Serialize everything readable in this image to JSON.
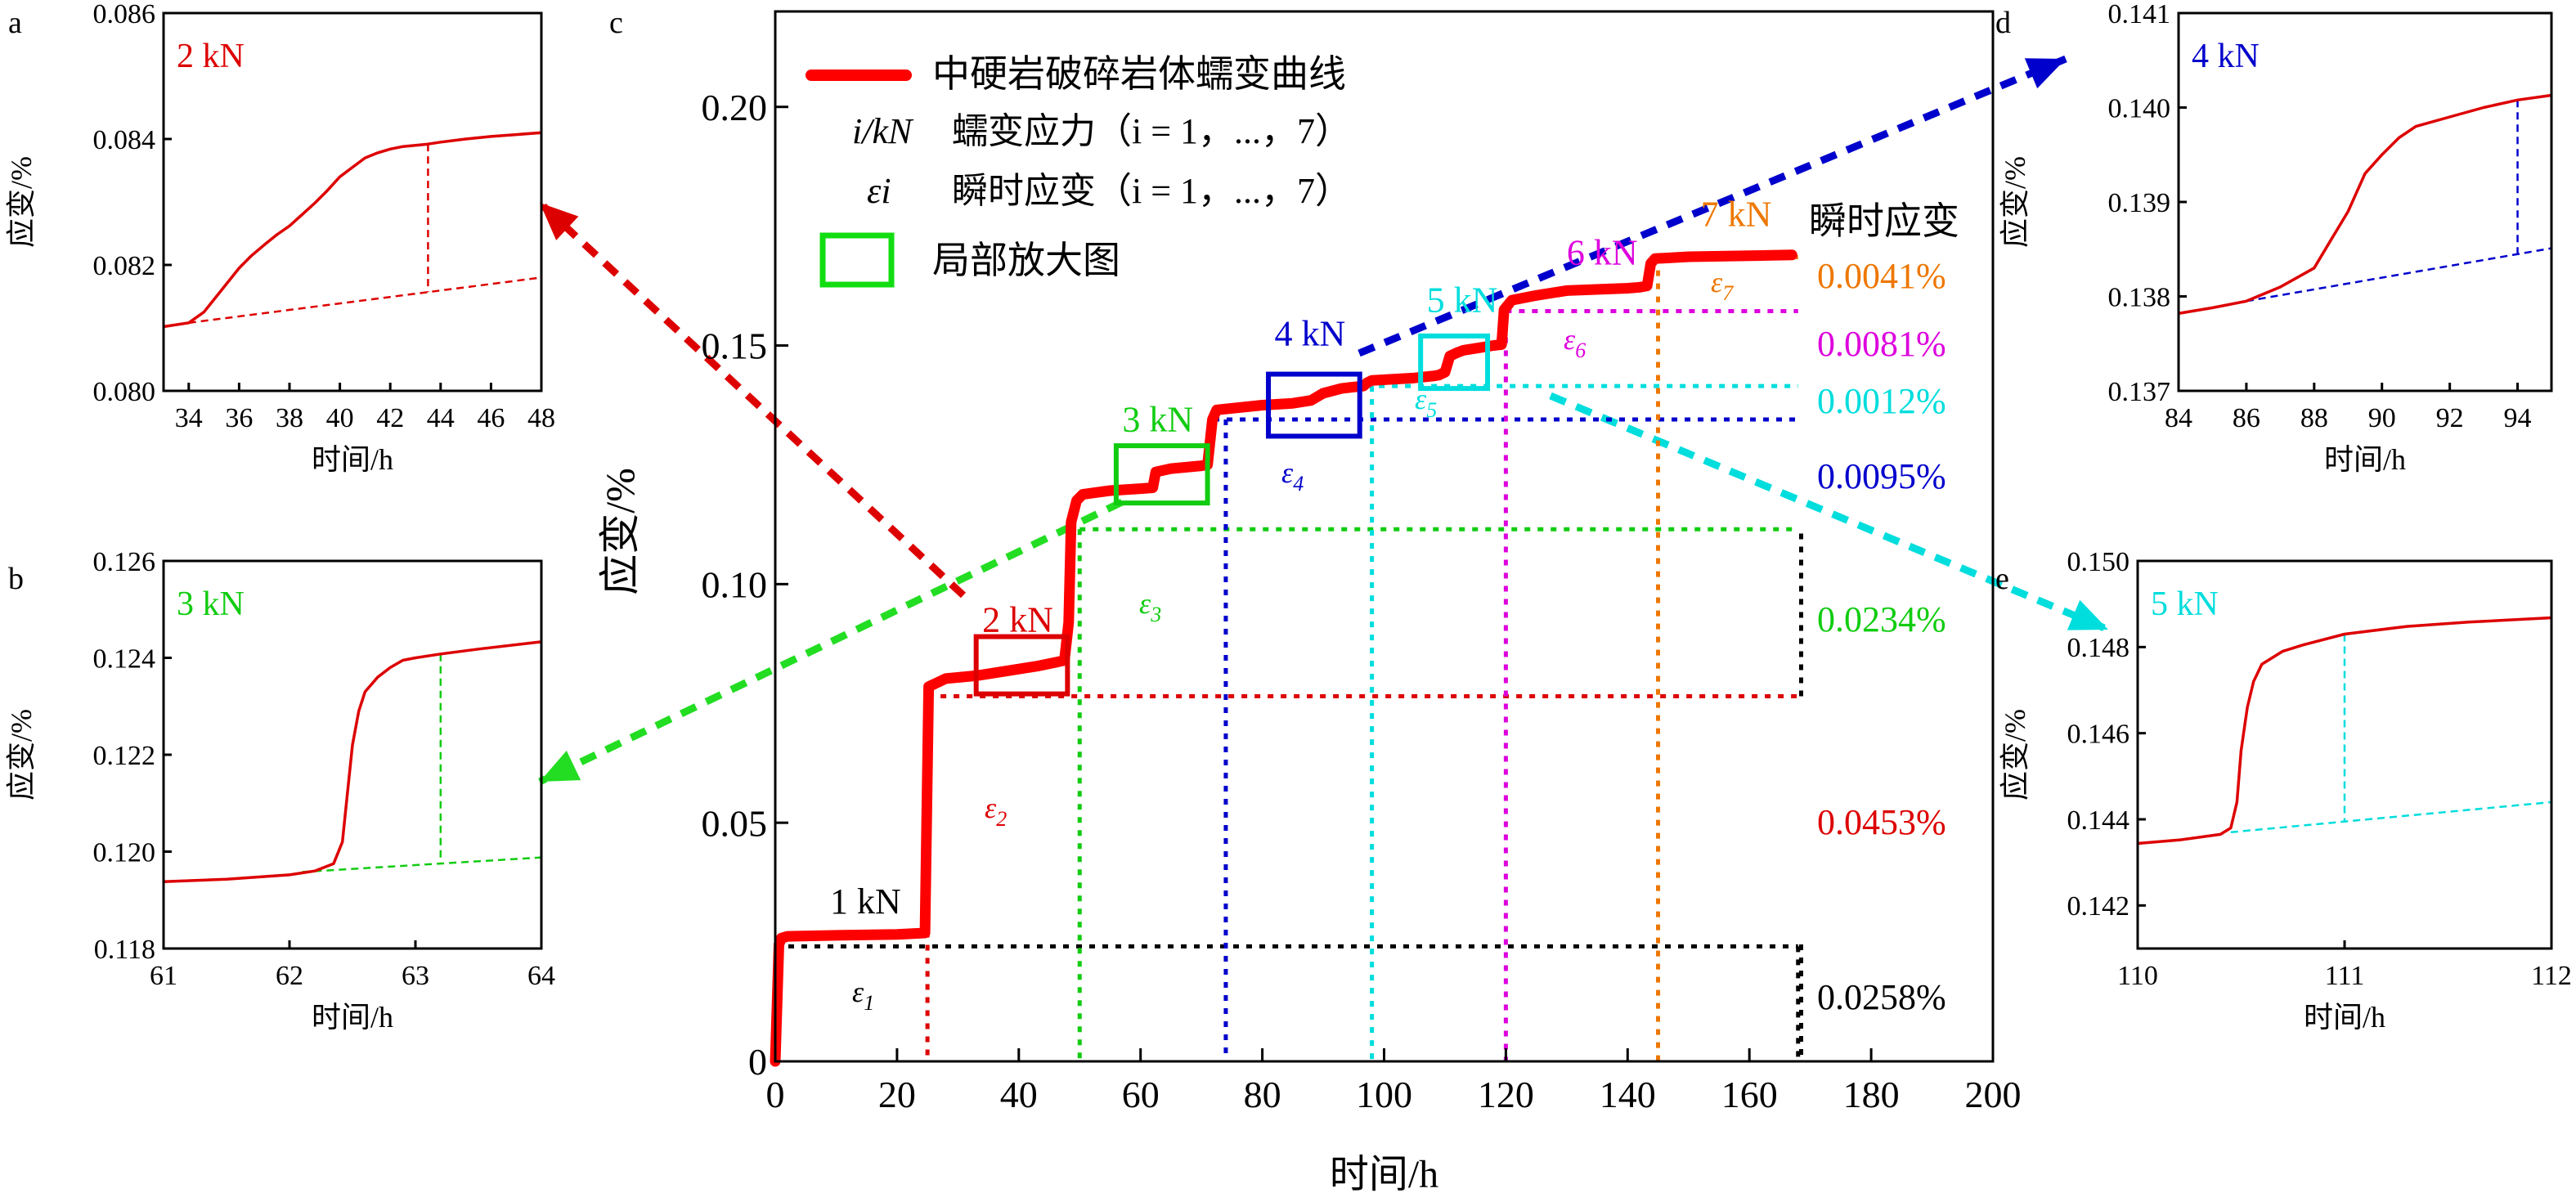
{
  "chart_data": [
    {
      "panel": "c",
      "type": "line",
      "xlabel": "时间/h",
      "ylabel": "应变/%",
      "xlim": [
        0,
        200
      ],
      "ylim": [
        0,
        0.22
      ],
      "xticks": [
        0,
        20,
        40,
        60,
        80,
        100,
        120,
        140,
        160,
        180,
        200
      ],
      "yticks": [
        0,
        0.05,
        0.1,
        0.15,
        0.2
      ],
      "ytick_labels": [
        "0",
        "0.05",
        "0.10",
        "0.15",
        "0.20"
      ],
      "legend": {
        "curve": "中硬岩破碎岩体蠕变曲线",
        "stress_key": "i/kN",
        "stress_desc": "蠕变应力（",
        "strain_key": "εi",
        "strain_desc": "瞬时应变（",
        "range_i": "i = 1，...，7）",
        "zoom": "局部放大图"
      },
      "series": [
        {
          "color": "#ff0000",
          "x": [
            0,
            0.6,
            1,
            2,
            10,
            20,
            24.6,
            25.2,
            28,
            33,
            38,
            43,
            46,
            47.5,
            48.2,
            48.6,
            49.5,
            50.5,
            55,
            60,
            62,
            62.5,
            65,
            70,
            71,
            71.8,
            72.5,
            80,
            85,
            88,
            90,
            93,
            95,
            96.6,
            97.2,
            98,
            105,
            108,
            109,
            110,
            110.8,
            112,
            113,
            118,
            119.3,
            119.7,
            121,
            125,
            130,
            140,
            142,
            143.2,
            143.8,
            144.5,
            150,
            160,
            167
          ],
          "y": [
            0,
            0.0245,
            0.0258,
            0.0262,
            0.0264,
            0.0266,
            0.0269,
            0.0785,
            0.0802,
            0.0808,
            0.0818,
            0.0828,
            0.0836,
            0.084,
            0.092,
            0.113,
            0.1175,
            0.1188,
            0.1196,
            0.12,
            0.1202,
            0.1235,
            0.1242,
            0.1248,
            0.125,
            0.1345,
            0.1365,
            0.1375,
            0.1379,
            0.1385,
            0.14,
            0.141,
            0.1413,
            0.1415,
            0.1422,
            0.1427,
            0.1432,
            0.1436,
            0.1438,
            0.1444,
            0.1478,
            0.1485,
            0.149,
            0.15,
            0.1502,
            0.1575,
            0.1595,
            0.1605,
            0.1615,
            0.162,
            0.1622,
            0.1625,
            0.1672,
            0.1682,
            0.1686,
            0.1688,
            0.169
          ]
        }
      ],
      "stress_labels": [
        {
          "label": "1 kN",
          "color": "#000000",
          "x": 9,
          "y": 0.031
        },
        {
          "label": "2 kN",
          "color": "#dd0000",
          "x": 34,
          "y": 0.09
        },
        {
          "label": "3 kN",
          "color": "#11cc11",
          "x": 57,
          "y": 0.132
        },
        {
          "label": "4 kN",
          "color": "#0000cc",
          "x": 82,
          "y": 0.15
        },
        {
          "label": "5 kN",
          "color": "#00dddd",
          "x": 107,
          "y": 0.157
        },
        {
          "label": "6 kN",
          "color": "#dd00dd",
          "x": 130,
          "y": 0.167
        },
        {
          "label": "7 kN",
          "color": "#ee7700",
          "x": 152,
          "y": 0.175
        }
      ],
      "instantaneous_strain": {
        "header": "瞬时应变",
        "items": [
          {
            "label": "ε7",
            "value": "0.0041%",
            "color": "#ee7700"
          },
          {
            "label": "ε6",
            "value": "0.0081%",
            "color": "#dd00dd"
          },
          {
            "label": "ε5",
            "value": "0.0012%",
            "color": "#00dddd"
          },
          {
            "label": "ε4",
            "value": "0.0095%",
            "color": "#0000cc"
          },
          {
            "label": "ε3",
            "value": "0.0234%",
            "color": "#11cc11"
          },
          {
            "label": "ε2",
            "value": "0.0453%",
            "color": "#dd0000"
          },
          {
            "label": "ε1",
            "value": "0.0258%",
            "color": "#000000"
          }
        ]
      },
      "zoom_boxes": [
        {
          "color": "#dd0000",
          "x": [
            33,
            48
          ],
          "y": [
            0.077,
            0.089
          ]
        },
        {
          "color": "#11cc11",
          "x": [
            56,
            71
          ],
          "y": [
            0.117,
            0.129
          ]
        },
        {
          "color": "#0000cc",
          "x": [
            81,
            96
          ],
          "y": [
            0.131,
            0.144
          ]
        },
        {
          "color": "#00dddd",
          "x": [
            106,
            117
          ],
          "y": [
            0.141,
            0.152
          ]
        }
      ]
    },
    {
      "panel": "a",
      "type": "line",
      "title": "2 kN",
      "color": "#dd0000",
      "xlabel": "时间/h",
      "ylabel": "应变/%",
      "xlim": [
        33,
        48
      ],
      "ylim": [
        0.08,
        0.086
      ],
      "xticks": [
        34,
        36,
        38,
        40,
        42,
        44,
        46,
        48
      ],
      "yticks": [
        0.08,
        0.082,
        0.084,
        0.086
      ],
      "ytick_labels": [
        "0.080",
        "0.082",
        "0.084",
        "0.086"
      ],
      "x": [
        33,
        34,
        34.6,
        35,
        35.5,
        36,
        36.5,
        37,
        37.5,
        38,
        38.5,
        39,
        39.5,
        40,
        40.5,
        41,
        41.5,
        42,
        42.5,
        43,
        43.5,
        44,
        45,
        46,
        47,
        48
      ],
      "y": [
        0.08102,
        0.08108,
        0.08125,
        0.08145,
        0.0817,
        0.08195,
        0.08215,
        0.08232,
        0.08248,
        0.08262,
        0.0828,
        0.08298,
        0.08318,
        0.0834,
        0.08355,
        0.0837,
        0.08378,
        0.08384,
        0.08388,
        0.0839,
        0.08392,
        0.08395,
        0.084,
        0.08404,
        0.08407,
        0.0841
      ],
      "baseline": {
        "x": [
          34,
          48
        ],
        "y": [
          0.08108,
          0.0818
        ]
      },
      "marker_x": 43.5
    },
    {
      "panel": "b",
      "type": "line",
      "title": "3 kN",
      "color": "#11cc11",
      "xlabel": "时间/h",
      "ylabel": "应变/%",
      "xlim": [
        61,
        64
      ],
      "ylim": [
        0.118,
        0.126
      ],
      "xticks": [
        61,
        62,
        63,
        64
      ],
      "yticks": [
        0.118,
        0.12,
        0.122,
        0.124,
        0.126
      ],
      "ytick_labels": [
        "0.118",
        "0.120",
        "0.122",
        "0.124",
        "0.126"
      ],
      "x": [
        61,
        61.5,
        62,
        62.2,
        62.35,
        62.42,
        62.46,
        62.5,
        62.55,
        62.6,
        62.7,
        62.8,
        62.9,
        63,
        63.2,
        63.5,
        64
      ],
      "y": [
        0.11938,
        0.11943,
        0.11952,
        0.1196,
        0.11975,
        0.1202,
        0.1212,
        0.1222,
        0.1229,
        0.1233,
        0.1236,
        0.1238,
        0.12395,
        0.124,
        0.12408,
        0.12418,
        0.12433
      ],
      "baseline": {
        "x": [
          62.1,
          64
        ],
        "y": [
          0.11958,
          0.11988
        ]
      },
      "marker_x": 63.2
    },
    {
      "panel": "d",
      "type": "line",
      "title": "4 kN",
      "color": "#0000cc",
      "xlabel": "时间/h",
      "ylabel": "应变/%",
      "xlim": [
        84,
        95
      ],
      "ylim": [
        0.137,
        0.141
      ],
      "xticks": [
        84,
        86,
        88,
        90,
        92,
        94
      ],
      "yticks": [
        0.137,
        0.138,
        0.139,
        0.14,
        0.141
      ],
      "ytick_labels": [
        "0.137",
        "0.138",
        "0.139",
        "0.140",
        "0.141"
      ],
      "x": [
        84,
        85,
        86,
        87,
        88,
        88.5,
        89,
        89.5,
        90,
        90.5,
        91,
        92,
        93,
        94,
        95
      ],
      "y": [
        0.13782,
        0.13788,
        0.13795,
        0.1381,
        0.1383,
        0.1386,
        0.1389,
        0.1393,
        0.1395,
        0.13968,
        0.1398,
        0.1399,
        0.14,
        0.14008,
        0.14013
      ],
      "baseline": {
        "x": [
          86,
          95
        ],
        "y": [
          0.13795,
          0.13851
        ]
      },
      "marker_x": 94
    },
    {
      "panel": "e",
      "type": "line",
      "title": "5 kN",
      "color": "#00dddd",
      "xlabel": "时间/h",
      "ylabel": "应变/%",
      "xlim": [
        110,
        112
      ],
      "ylim": [
        0.141,
        0.15
      ],
      "xticks": [
        110,
        111,
        112
      ],
      "yticks": [
        0.142,
        0.144,
        0.146,
        0.148,
        0.15
      ],
      "ytick_labels": [
        "0.142",
        "0.144",
        "0.146",
        "0.148",
        "0.150"
      ],
      "x": [
        110,
        110.2,
        110.4,
        110.45,
        110.48,
        110.5,
        110.53,
        110.56,
        110.6,
        110.7,
        110.8,
        111,
        111.3,
        111.6,
        112
      ],
      "y": [
        0.14344,
        0.14352,
        0.14365,
        0.1438,
        0.1444,
        0.1456,
        0.1466,
        0.1472,
        0.1476,
        0.1479,
        0.14805,
        0.1483,
        0.14848,
        0.14858,
        0.14868
      ],
      "baseline": {
        "x": [
          110.45,
          112
        ],
        "y": [
          0.1437,
          0.1444
        ]
      },
      "marker_x": 111
    }
  ],
  "panel_letters": [
    "a",
    "b",
    "c",
    "d",
    "e"
  ]
}
